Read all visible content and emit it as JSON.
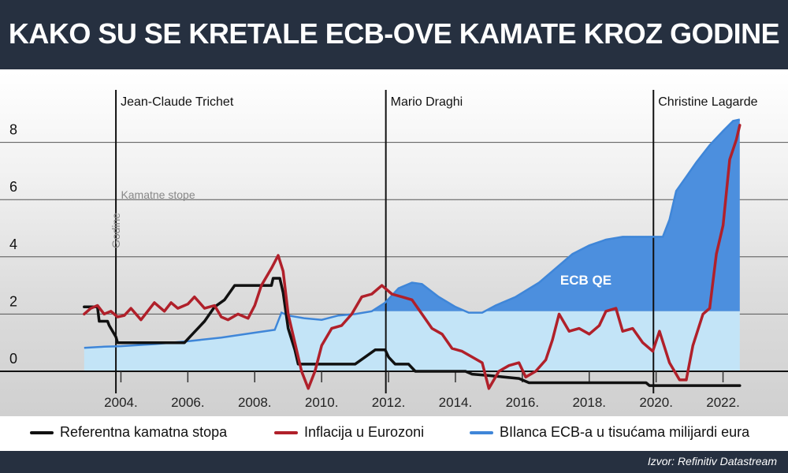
{
  "header": {
    "title": "KAKO SU SE KRETALE ECB-OVE KAMATE KROZ GODINE"
  },
  "footer": {
    "source": "Izvor: Refinitiv Datastream"
  },
  "legend": {
    "items": [
      {
        "label": "Referentna kamatna stopa",
        "color": "#111111"
      },
      {
        "label": "Inflacija u Eurozoni",
        "color": "#b0202a"
      },
      {
        "label": "BIlanca ECB-a u tisućama milijardi eura",
        "color": "#3f86d8"
      }
    ]
  },
  "chart_data": {
    "type": "line",
    "xlim": [
      2002.5,
      2023.0
    ],
    "ylim": [
      -1,
      10
    ],
    "y_ticks": [
      0,
      2,
      4,
      6,
      8
    ],
    "x_ticks": [
      {
        "value": 2004,
        "label": "2004."
      },
      {
        "value": 2006,
        "label": "2006."
      },
      {
        "value": 2008,
        "label": "2008."
      },
      {
        "value": 2010,
        "label": "2010."
      },
      {
        "value": 2012,
        "label": "2012."
      },
      {
        "value": 2014,
        "label": "2014."
      },
      {
        "value": 2016,
        "label": "2016."
      },
      {
        "value": 2018,
        "label": "2018."
      },
      {
        "value": 2020,
        "label": "2020."
      },
      {
        "value": 2022,
        "label": "2022."
      }
    ],
    "grid": true,
    "annotations": {
      "presidents": [
        {
          "name": "Jean-Claude Trichet",
          "x": 2003.85
        },
        {
          "name": "Mario Draghi",
          "x": 2011.92
        },
        {
          "name": "Christine Lagarde",
          "x": 2019.92
        }
      ],
      "rates_label": "Kamatne stope",
      "years_label": "Godine",
      "qe_label": "ECB QE",
      "qe_threshold": 2.1
    },
    "series": [
      {
        "name": "BIlanca ECB-a u tisućama milijardi eura",
        "color": "#3f86d8",
        "fill_light": "#c3e4f7",
        "fill_dark": "#4c8fde",
        "points": [
          [
            2002.9,
            0.82
          ],
          [
            2003.5,
            0.86
          ],
          [
            2004.0,
            0.88
          ],
          [
            2005.0,
            0.95
          ],
          [
            2006.0,
            1.05
          ],
          [
            2007.0,
            1.18
          ],
          [
            2008.0,
            1.35
          ],
          [
            2008.6,
            1.45
          ],
          [
            2008.8,
            2.05
          ],
          [
            2009.0,
            1.95
          ],
          [
            2009.5,
            1.85
          ],
          [
            2010.0,
            1.8
          ],
          [
            2010.5,
            1.95
          ],
          [
            2011.0,
            2.0
          ],
          [
            2011.5,
            2.1
          ],
          [
            2011.9,
            2.4
          ],
          [
            2012.3,
            2.9
          ],
          [
            2012.7,
            3.1
          ],
          [
            2013.0,
            3.05
          ],
          [
            2013.5,
            2.6
          ],
          [
            2014.0,
            2.25
          ],
          [
            2014.4,
            2.05
          ],
          [
            2014.8,
            2.05
          ],
          [
            2015.2,
            2.3
          ],
          [
            2015.8,
            2.6
          ],
          [
            2016.5,
            3.1
          ],
          [
            2017.0,
            3.6
          ],
          [
            2017.5,
            4.1
          ],
          [
            2018.0,
            4.4
          ],
          [
            2018.5,
            4.6
          ],
          [
            2019.0,
            4.7
          ],
          [
            2019.5,
            4.7
          ],
          [
            2019.9,
            4.7
          ],
          [
            2020.2,
            4.7
          ],
          [
            2020.4,
            5.3
          ],
          [
            2020.6,
            6.3
          ],
          [
            2020.9,
            6.8
          ],
          [
            2021.2,
            7.3
          ],
          [
            2021.6,
            7.9
          ],
          [
            2022.0,
            8.4
          ],
          [
            2022.3,
            8.75
          ],
          [
            2022.5,
            8.8
          ]
        ]
      },
      {
        "name": "Referentna kamatna stopa",
        "color": "#111111",
        "points": [
          [
            2002.9,
            2.25
          ],
          [
            2003.3,
            2.25
          ],
          [
            2003.35,
            1.75
          ],
          [
            2003.6,
            1.75
          ],
          [
            2003.65,
            1.6
          ],
          [
            2003.85,
            1.2
          ],
          [
            2003.9,
            1.0
          ],
          [
            2005.9,
            1.0
          ],
          [
            2006.1,
            1.25
          ],
          [
            2006.3,
            1.5
          ],
          [
            2006.5,
            1.75
          ],
          [
            2006.8,
            2.25
          ],
          [
            2007.1,
            2.5
          ],
          [
            2007.4,
            3.0
          ],
          [
            2007.6,
            3.0
          ],
          [
            2008.5,
            3.0
          ],
          [
            2008.55,
            3.25
          ],
          [
            2008.75,
            3.25
          ],
          [
            2008.85,
            2.75
          ],
          [
            2009.0,
            1.5
          ],
          [
            2009.2,
            0.75
          ],
          [
            2009.3,
            0.25
          ],
          [
            2011.0,
            0.25
          ],
          [
            2011.3,
            0.5
          ],
          [
            2011.6,
            0.75
          ],
          [
            2011.9,
            0.75
          ],
          [
            2012.0,
            0.5
          ],
          [
            2012.2,
            0.25
          ],
          [
            2012.6,
            0.25
          ],
          [
            2012.8,
            0.0
          ],
          [
            2014.3,
            0.0
          ],
          [
            2014.5,
            -0.1
          ],
          [
            2015.0,
            -0.15
          ],
          [
            2015.9,
            -0.25
          ],
          [
            2016.2,
            -0.4
          ],
          [
            2019.7,
            -0.4
          ],
          [
            2019.8,
            -0.5
          ],
          [
            2022.5,
            -0.5
          ]
        ]
      },
      {
        "name": "Inflacija u Eurozoni",
        "color": "#b0202a",
        "points": [
          [
            2002.9,
            2.0
          ],
          [
            2003.1,
            2.2
          ],
          [
            2003.3,
            2.3
          ],
          [
            2003.5,
            2.0
          ],
          [
            2003.7,
            2.1
          ],
          [
            2003.9,
            1.9
          ],
          [
            2004.1,
            1.95
          ],
          [
            2004.3,
            2.2
          ],
          [
            2004.6,
            1.8
          ],
          [
            2004.8,
            2.1
          ],
          [
            2005.0,
            2.4
          ],
          [
            2005.3,
            2.1
          ],
          [
            2005.5,
            2.4
          ],
          [
            2005.7,
            2.2
          ],
          [
            2006.0,
            2.35
          ],
          [
            2006.2,
            2.6
          ],
          [
            2006.5,
            2.2
          ],
          [
            2006.8,
            2.3
          ],
          [
            2007.0,
            1.9
          ],
          [
            2007.2,
            1.8
          ],
          [
            2007.5,
            2.0
          ],
          [
            2007.8,
            1.85
          ],
          [
            2008.0,
            2.3
          ],
          [
            2008.2,
            3.0
          ],
          [
            2008.5,
            3.6
          ],
          [
            2008.7,
            4.05
          ],
          [
            2008.85,
            3.5
          ],
          [
            2009.0,
            2.0
          ],
          [
            2009.2,
            1.0
          ],
          [
            2009.4,
            0.0
          ],
          [
            2009.6,
            -0.6
          ],
          [
            2009.8,
            0.0
          ],
          [
            2010.0,
            0.9
          ],
          [
            2010.3,
            1.5
          ],
          [
            2010.6,
            1.6
          ],
          [
            2010.9,
            2.0
          ],
          [
            2011.2,
            2.6
          ],
          [
            2011.5,
            2.7
          ],
          [
            2011.8,
            3.0
          ],
          [
            2012.1,
            2.7
          ],
          [
            2012.4,
            2.6
          ],
          [
            2012.7,
            2.5
          ],
          [
            2013.0,
            2.0
          ],
          [
            2013.3,
            1.5
          ],
          [
            2013.6,
            1.3
          ],
          [
            2013.9,
            0.8
          ],
          [
            2014.2,
            0.7
          ],
          [
            2014.5,
            0.5
          ],
          [
            2014.8,
            0.3
          ],
          [
            2015.0,
            -0.6
          ],
          [
            2015.3,
            0.0
          ],
          [
            2015.6,
            0.2
          ],
          [
            2015.9,
            0.3
          ],
          [
            2016.1,
            -0.2
          ],
          [
            2016.4,
            0.0
          ],
          [
            2016.7,
            0.4
          ],
          [
            2016.9,
            1.1
          ],
          [
            2017.1,
            2.0
          ],
          [
            2017.4,
            1.4
          ],
          [
            2017.7,
            1.5
          ],
          [
            2018.0,
            1.3
          ],
          [
            2018.3,
            1.6
          ],
          [
            2018.5,
            2.1
          ],
          [
            2018.8,
            2.2
          ],
          [
            2019.0,
            1.4
          ],
          [
            2019.3,
            1.5
          ],
          [
            2019.6,
            1.0
          ],
          [
            2019.9,
            0.7
          ],
          [
            2020.1,
            1.4
          ],
          [
            2020.4,
            0.3
          ],
          [
            2020.7,
            -0.3
          ],
          [
            2020.9,
            -0.3
          ],
          [
            2021.1,
            0.9
          ],
          [
            2021.4,
            2.0
          ],
          [
            2021.6,
            2.2
          ],
          [
            2021.8,
            4.1
          ],
          [
            2022.0,
            5.1
          ],
          [
            2022.2,
            7.4
          ],
          [
            2022.4,
            8.1
          ],
          [
            2022.5,
            8.6
          ]
        ]
      }
    ]
  }
}
